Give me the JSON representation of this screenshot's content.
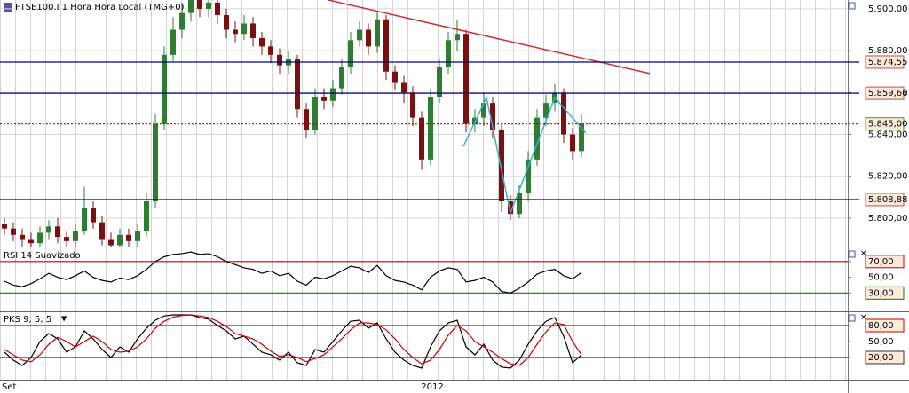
{
  "chart_data": [
    {
      "type": "candlestick",
      "title": "FTSE100.I 1 Hora Hora Local (TMG+0)",
      "open": [
        5797,
        5795,
        5792,
        5790,
        5788,
        5793,
        5796,
        5791,
        5789,
        5794,
        5805,
        5798,
        5790,
        5787,
        5792,
        5789,
        5794,
        5808,
        5845,
        5878,
        5890,
        5898,
        5905,
        5900,
        5903,
        5897,
        5890,
        5888,
        5893,
        5886,
        5882,
        5878,
        5873,
        5876,
        5852,
        5842,
        5858,
        5856,
        5862,
        5872,
        5885,
        5890,
        5882,
        5895,
        5870,
        5865,
        5860,
        5848,
        5828,
        5858,
        5872,
        5885,
        5888,
        5845,
        5848,
        5855,
        5842,
        5808,
        5802,
        5812,
        5828,
        5848,
        5855,
        5860,
        5840,
        5832
      ],
      "high": [
        5800,
        5798,
        5795,
        5793,
        5796,
        5799,
        5800,
        5794,
        5797,
        5815,
        5808,
        5801,
        5793,
        5795,
        5795,
        5797,
        5812,
        5850,
        5882,
        5896,
        5903,
        5909,
        5910,
        5908,
        5906,
        5900,
        5894,
        5897,
        5896,
        5889,
        5885,
        5881,
        5880,
        5878,
        5855,
        5862,
        5862,
        5866,
        5876,
        5889,
        5894,
        5893,
        5899,
        5897,
        5873,
        5868,
        5863,
        5851,
        5862,
        5876,
        5889,
        5895,
        5890,
        5852,
        5860,
        5858,
        5845,
        5811,
        5816,
        5832,
        5852,
        5859,
        5864,
        5862,
        5843,
        5850
      ],
      "low": [
        5792,
        5789,
        5786,
        5784,
        5785,
        5790,
        5788,
        5786,
        5786,
        5792,
        5795,
        5787,
        5784,
        5784,
        5786,
        5786,
        5791,
        5805,
        5842,
        5875,
        5886,
        5894,
        5896,
        5896,
        5893,
        5886,
        5884,
        5885,
        5882,
        5878,
        5874,
        5869,
        5869,
        5848,
        5838,
        5840,
        5852,
        5853,
        5859,
        5869,
        5882,
        5878,
        5879,
        5866,
        5861,
        5855,
        5844,
        5823,
        5825,
        5855,
        5869,
        5880,
        5841,
        5841,
        5844,
        5838,
        5803,
        5799,
        5800,
        5808,
        5825,
        5844,
        5851,
        5836,
        5828,
        5829
      ],
      "close": [
        5795,
        5792,
        5790,
        5788,
        5793,
        5796,
        5791,
        5789,
        5794,
        5805,
        5798,
        5790,
        5787,
        5792,
        5789,
        5794,
        5808,
        5845,
        5878,
        5890,
        5898,
        5905,
        5900,
        5903,
        5897,
        5890,
        5888,
        5893,
        5886,
        5882,
        5878,
        5873,
        5876,
        5852,
        5842,
        5858,
        5856,
        5862,
        5872,
        5885,
        5890,
        5882,
        5895,
        5870,
        5865,
        5860,
        5848,
        5828,
        5858,
        5872,
        5885,
        5888,
        5845,
        5848,
        5855,
        5842,
        5808,
        5802,
        5812,
        5828,
        5848,
        5855,
        5860,
        5840,
        5832,
        5845
      ],
      "up_color": "#2e7d32",
      "down_color": "#7a1010",
      "xlim": [
        -0.5,
        95
      ],
      "ylim": [
        5786.4,
        5904.2
      ],
      "yticks": [
        {
          "value": 5800,
          "label": "5.800,00"
        },
        {
          "value": 5820,
          "label": "5.820,00"
        },
        {
          "value": 5840,
          "label": "5.840,00"
        },
        {
          "value": 5860,
          "label": "5.860,00"
        },
        {
          "value": 5880,
          "label": "5.880,00"
        },
        {
          "value": 5900,
          "label": "5.900,00"
        }
      ],
      "grid": true,
      "levels": [
        {
          "value": 5874.55,
          "label": "5.874,55",
          "color": "#000080",
          "box_color": "#c0504d"
        },
        {
          "value": 5859.66,
          "label": "5.859,66",
          "color": "#000080",
          "box_color": "#c0504d"
        },
        {
          "value": 5845,
          "label": "5.845,00",
          "color": "#c00000",
          "box_color": "#339933",
          "style": "dotted"
        },
        {
          "value": 5808.88,
          "label": "5.808,88",
          "color": "#000080",
          "box_color": "#c0504d"
        }
      ],
      "trendline": {
        "x": [
          36.5,
          72.7
        ],
        "values": [
          5904.2,
          5869.1
        ],
        "color": "#c83232"
      },
      "zigzag": {
        "x": [
          51.7,
          54.3,
          57,
          62,
          65.5
        ],
        "values": [
          5834.3,
          5857.6,
          5802.5,
          5857.6,
          5840.7
        ],
        "color": "#3ab0d0"
      }
    },
    {
      "type": "line",
      "title": "RSI 14 Suavizado",
      "series": [
        {
          "color": "#000000",
          "values": [
            45,
            40,
            38,
            42,
            48,
            55,
            50,
            47,
            52,
            58,
            50,
            46,
            44,
            49,
            47,
            52,
            60,
            70,
            76,
            79,
            80,
            82,
            79,
            80,
            76,
            70,
            66,
            62,
            60,
            55,
            58,
            52,
            55,
            45,
            40,
            50,
            48,
            52,
            58,
            64,
            62,
            56,
            65,
            52,
            46,
            44,
            40,
            34,
            50,
            58,
            62,
            60,
            44,
            46,
            50,
            44,
            32,
            30,
            36,
            44,
            54,
            58,
            60,
            52,
            48,
            56
          ]
        }
      ],
      "xlim": [
        -0.5,
        95
      ],
      "ylim": [
        6.7,
        86.7
      ],
      "yticks": [
        {
          "value": 30,
          "label": "30,00"
        },
        {
          "value": 50,
          "label": "50,00"
        },
        {
          "value": 70,
          "label": "70,00"
        }
      ],
      "levels": [
        {
          "value": 70,
          "color": "#c00000"
        },
        {
          "value": 30,
          "color": "#008000"
        }
      ]
    },
    {
      "type": "line",
      "title": "PKS 9; 5; 5",
      "series": [
        {
          "color": "#000000",
          "values": [
            30,
            15,
            5,
            20,
            50,
            65,
            55,
            30,
            40,
            70,
            55,
            35,
            20,
            40,
            30,
            55,
            75,
            90,
            98,
            100,
            100,
            100,
            95,
            92,
            80,
            70,
            55,
            60,
            45,
            30,
            25,
            15,
            30,
            10,
            5,
            35,
            30,
            50,
            70,
            88,
            90,
            75,
            85,
            55,
            30,
            15,
            5,
            0,
            40,
            70,
            85,
            90,
            40,
            25,
            45,
            15,
            2,
            0,
            15,
            45,
            70,
            88,
            95,
            60,
            10,
            25
          ]
        },
        {
          "color": "#cc0000",
          "values": [
            35,
            25,
            15,
            12,
            25,
            45,
            58,
            50,
            40,
            50,
            60,
            50,
            35,
            30,
            32,
            40,
            55,
            75,
            88,
            96,
            99,
            100,
            98,
            95,
            88,
            78,
            65,
            60,
            55,
            45,
            32,
            22,
            25,
            20,
            12,
            18,
            25,
            40,
            55,
            72,
            85,
            85,
            82,
            72,
            55,
            35,
            20,
            8,
            15,
            35,
            62,
            80,
            70,
            50,
            40,
            30,
            18,
            8,
            5,
            20,
            45,
            68,
            85,
            82,
            50,
            25
          ]
        }
      ],
      "xlim": [
        -0.5,
        95
      ],
      "ylim": [
        -21.7,
        105
      ],
      "yticks": [
        {
          "value": 20,
          "label": "20,00"
        },
        {
          "value": 50,
          "label": "50,00"
        },
        {
          "value": 80,
          "label": "80,00"
        }
      ],
      "levels": [
        {
          "value": 80,
          "color": "#c00000"
        },
        {
          "value": 20,
          "color": "#333333"
        }
      ]
    }
  ],
  "time_axis": {
    "labels": [
      "Set",
      "2012"
    ]
  }
}
